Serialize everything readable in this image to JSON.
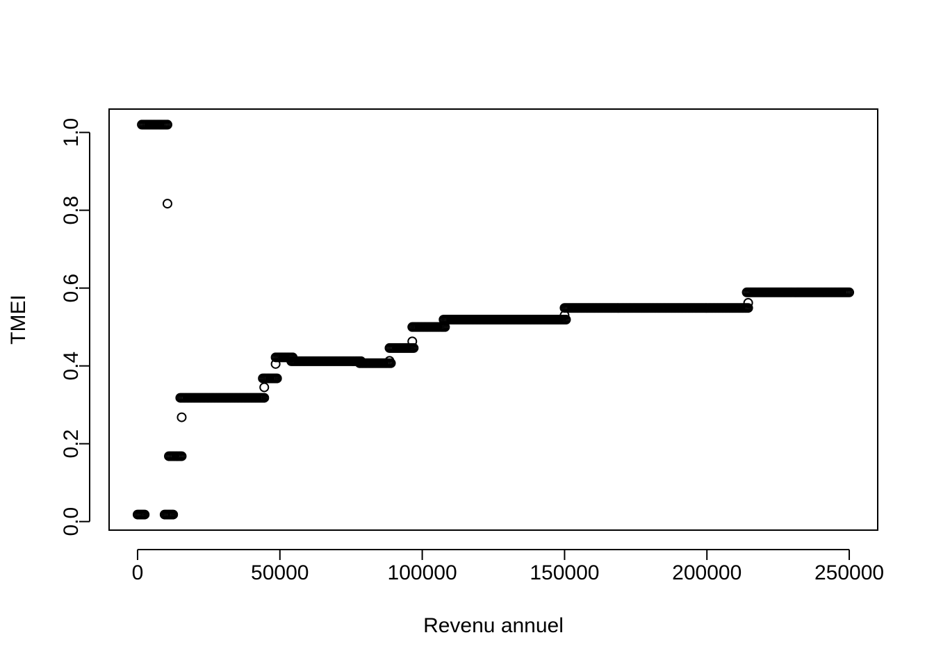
{
  "chart_data": {
    "type": "scatter",
    "title": "",
    "xlabel": "Revenu annuel",
    "ylabel": "TMEI",
    "xlim": [
      -10000,
      260000
    ],
    "ylim": [
      -0.022,
      1.06
    ],
    "grid": false,
    "legend": "none",
    "marker": "open-circle",
    "point_color": "#000000",
    "x_ticks": [
      {
        "value": 0,
        "label": "0"
      },
      {
        "value": 50000,
        "label": "50000"
      },
      {
        "value": 100000,
        "label": "100000"
      },
      {
        "value": 150000,
        "label": "150000"
      },
      {
        "value": 200000,
        "label": "200000"
      },
      {
        "value": 250000,
        "label": "250000"
      }
    ],
    "y_ticks": [
      {
        "value": 0.0,
        "label": "0.0"
      },
      {
        "value": 0.2,
        "label": "0.2"
      },
      {
        "value": 0.4,
        "label": "0.4"
      },
      {
        "value": 0.6,
        "label": "0.6"
      },
      {
        "value": 0.8,
        "label": "0.8"
      },
      {
        "value": 1.0,
        "label": "1.0"
      }
    ],
    "step_segments": [
      {
        "x_start": 0,
        "x_end": 2500,
        "y": 0.018
      },
      {
        "x_start": 1500,
        "x_end": 10500,
        "y": 1.02
      },
      {
        "x_start": 9500,
        "x_end": 12500,
        "y": 0.018
      },
      {
        "x_start": 11000,
        "x_end": 15500,
        "y": 0.168
      },
      {
        "x_start": 15000,
        "x_end": 44500,
        "y": 0.318
      },
      {
        "x_start": 44000,
        "x_end": 49000,
        "y": 0.368
      },
      {
        "x_start": 48500,
        "x_end": 54500,
        "y": 0.422
      },
      {
        "x_start": 54000,
        "x_end": 78500,
        "y": 0.412
      },
      {
        "x_start": 78000,
        "x_end": 89000,
        "y": 0.407
      },
      {
        "x_start": 88500,
        "x_end": 97000,
        "y": 0.446
      },
      {
        "x_start": 96500,
        "x_end": 108000,
        "y": 0.5
      },
      {
        "x_start": 107500,
        "x_end": 150500,
        "y": 0.519
      },
      {
        "x_start": 150000,
        "x_end": 214500,
        "y": 0.549
      },
      {
        "x_start": 214000,
        "x_end": 250000,
        "y": 0.589
      }
    ],
    "isolated_points": [
      {
        "x": 10500,
        "y": 0.817
      },
      {
        "x": 15500,
        "y": 0.268
      },
      {
        "x": 44500,
        "y": 0.345
      },
      {
        "x": 48500,
        "y": 0.405
      },
      {
        "x": 88500,
        "y": 0.413
      },
      {
        "x": 96500,
        "y": 0.463
      },
      {
        "x": 150000,
        "y": 0.53
      },
      {
        "x": 214500,
        "y": 0.562
      }
    ]
  }
}
